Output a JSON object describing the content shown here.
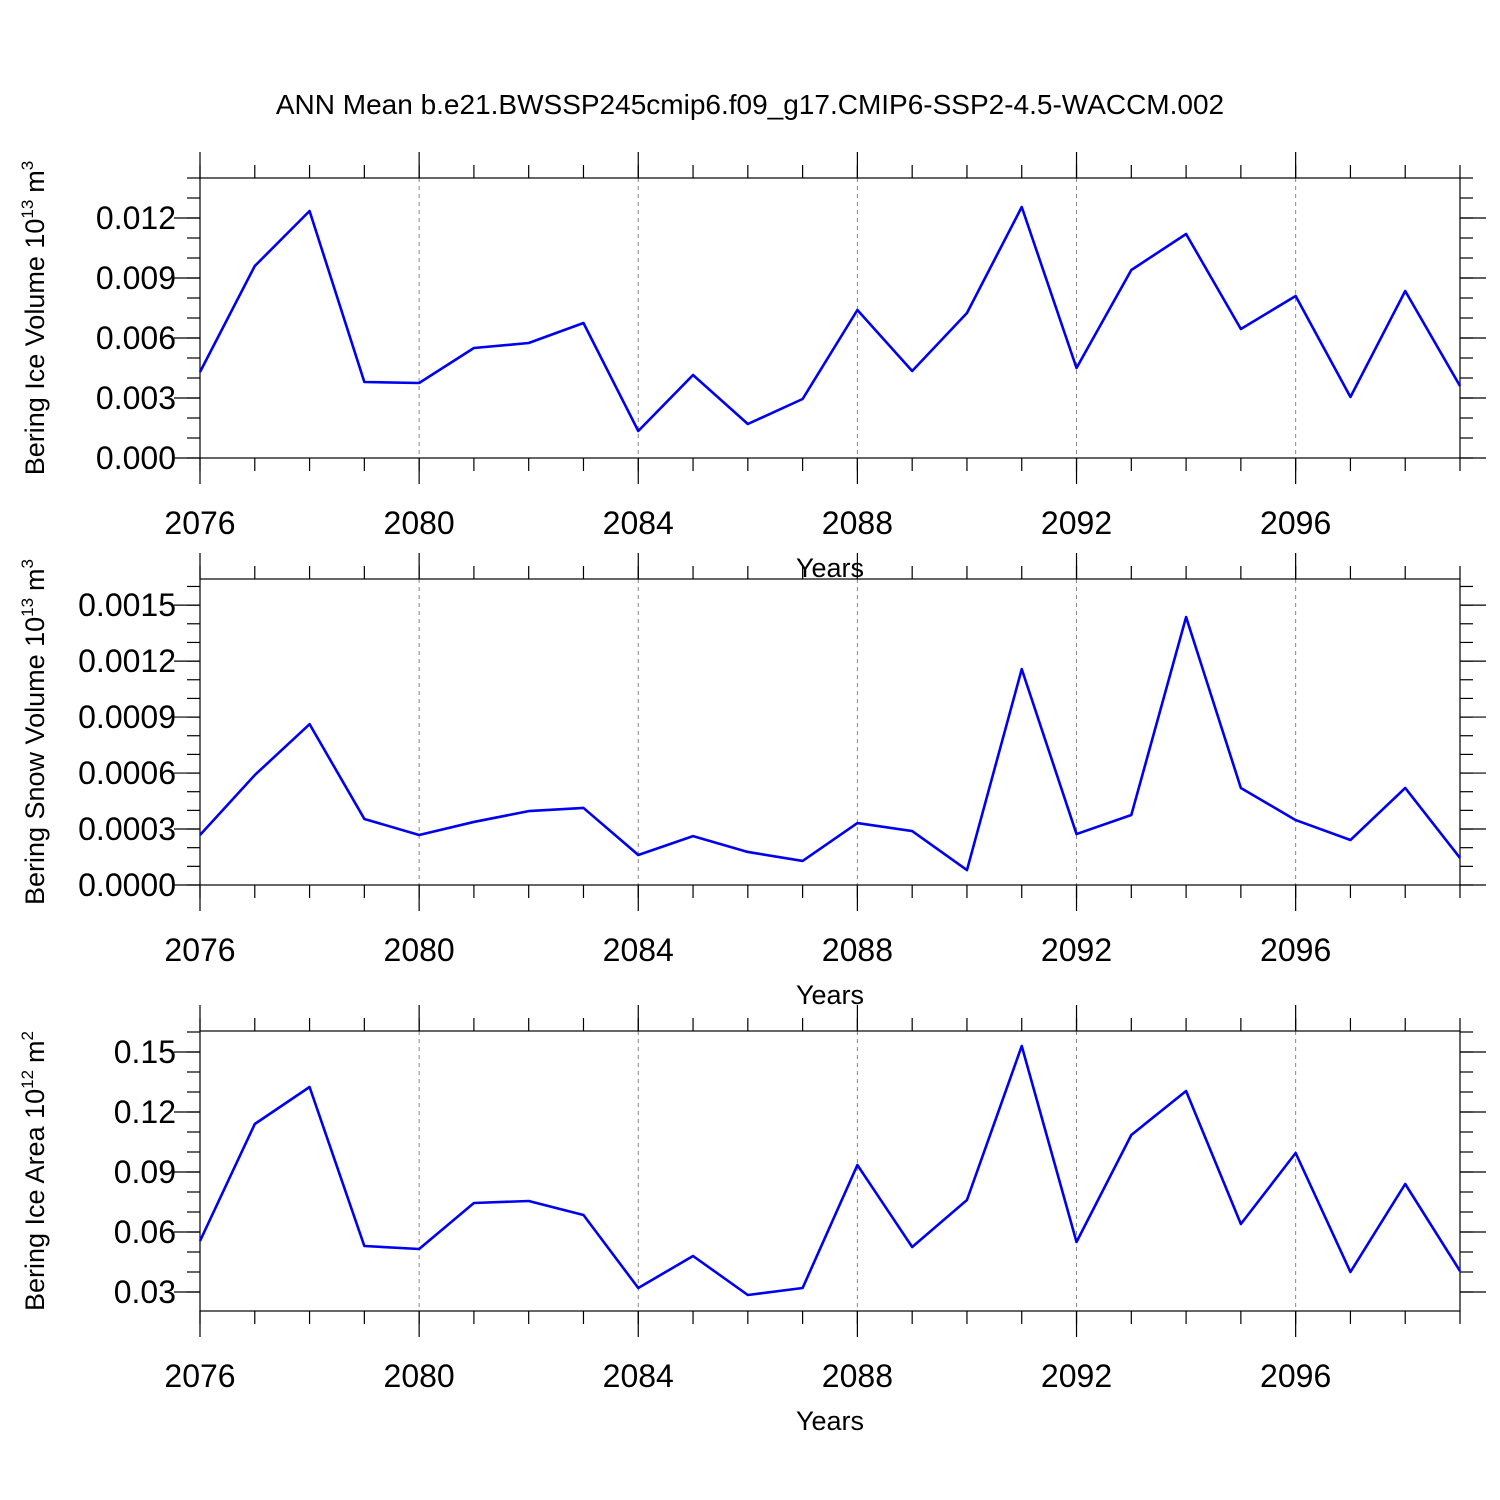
{
  "title": "ANN Mean b.e21.BWSSP245cmip6.f09_g17.CMIP6-SSP2-4.5-WACCM.002",
  "chart_data": [
    {
      "type": "line",
      "ylabel": "Bering Ice Volume 10",
      "ylabel_exponent": "13",
      "ylabel_unit": "m",
      "ylabel_unit_exponent": "3",
      "xlabel": "Years",
      "color": "#0000f0",
      "x_grid": true,
      "x": [
        2076,
        2077,
        2078,
        2079,
        2080,
        2081,
        2082,
        2083,
        2084,
        2085,
        2086,
        2087,
        2088,
        2089,
        2090,
        2091,
        2092,
        2093,
        2094,
        2095,
        2096,
        2097,
        2098,
        2099
      ],
      "values": [
        0.0043,
        0.0096,
        0.01235,
        0.0038,
        0.00375,
        0.0055,
        0.00575,
        0.00675,
        0.00135,
        0.00415,
        0.0017,
        0.00295,
        0.0074,
        0.00435,
        0.00725,
        0.01255,
        0.0045,
        0.0094,
        0.0112,
        0.00645,
        0.0081,
        0.00305,
        0.00835,
        0.0036
      ],
      "xlim": [
        2076,
        2099
      ],
      "xticks": [
        2076,
        2080,
        2084,
        2088,
        2092,
        2096
      ],
      "ylim": [
        0,
        0.014
      ],
      "yticks": [
        {
          "value": 0,
          "label": "0.000"
        },
        0.003,
        0.006,
        0.009,
        0.012
      ]
    },
    {
      "type": "line",
      "ylabel": "Bering Snow Volume 10",
      "ylabel_exponent": "13",
      "ylabel_unit": "m",
      "ylabel_unit_exponent": "3",
      "xlabel": "Years",
      "color": "#0000f0",
      "x_grid": true,
      "x": [
        2076,
        2077,
        2078,
        2079,
        2080,
        2081,
        2082,
        2083,
        2084,
        2085,
        2086,
        2087,
        2088,
        2089,
        2090,
        2091,
        2092,
        2093,
        2094,
        2095,
        2096,
        2097,
        2098,
        2099
      ],
      "values": [
        0.000268,
        0.000589,
        0.000862,
        0.000354,
        0.000268,
        0.000338,
        0.000396,
        0.000413,
        0.000161,
        0.000262,
        0.000177,
        0.000129,
        0.000332,
        0.000289,
        8e-05,
        0.001157,
        0.000273,
        0.000375,
        0.001436,
        0.00052,
        0.000348,
        0.000241,
        0.00052,
        0.000145
      ],
      "xlim": [
        2076,
        2099
      ],
      "xticks": [
        2076,
        2080,
        2084,
        2088,
        2092,
        2096
      ],
      "ylim": [
        0,
        0.00164
      ],
      "yticks": [
        {
          "value": 0,
          "label": "0.0000"
        },
        0.0003,
        0.0006,
        0.0009,
        0.0012,
        0.0015
      ]
    },
    {
      "type": "line",
      "ylabel": "Bering Ice Area 10",
      "ylabel_exponent": "12",
      "ylabel_unit": "m",
      "ylabel_unit_exponent": "2",
      "xlabel": "Years",
      "color": "#0000f0",
      "x_grid": true,
      "x": [
        2076,
        2077,
        2078,
        2079,
        2080,
        2081,
        2082,
        2083,
        2084,
        2085,
        2086,
        2087,
        2088,
        2089,
        2090,
        2091,
        2092,
        2093,
        2094,
        2095,
        2096,
        2097,
        2098,
        2099
      ],
      "values": [
        0.0555,
        0.114,
        0.1325,
        0.053,
        0.0515,
        0.0745,
        0.0755,
        0.0685,
        0.032,
        0.048,
        0.0285,
        0.032,
        0.0935,
        0.0525,
        0.076,
        0.153,
        0.055,
        0.1085,
        0.1305,
        0.064,
        0.0995,
        0.04,
        0.084,
        0.0405
      ],
      "xlim": [
        2076,
        2099
      ],
      "xticks": [
        2076,
        2080,
        2084,
        2088,
        2092,
        2096
      ],
      "ylim": [
        0.0205,
        0.1605
      ],
      "yticks": [
        0.03,
        0.06,
        0.09,
        0.12,
        0.15
      ]
    }
  ]
}
